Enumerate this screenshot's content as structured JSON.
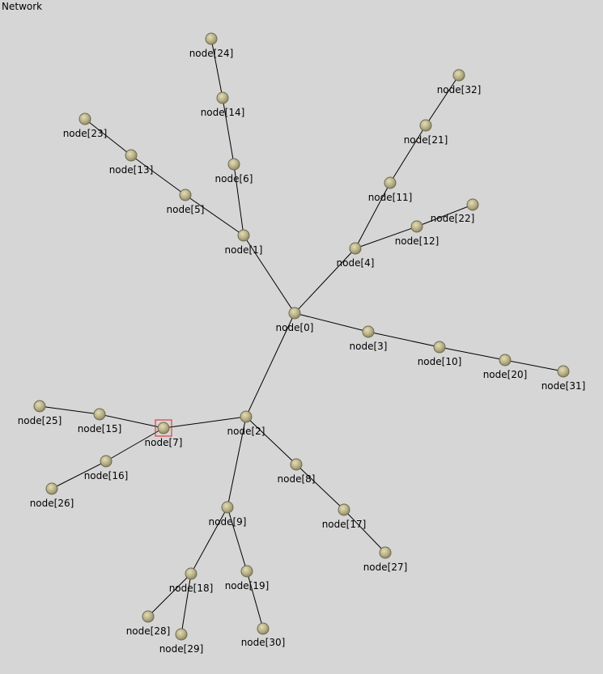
{
  "title": "Network",
  "selected_node": "node[7]",
  "colors": {
    "background": "#d6d6d6",
    "node_fill": "#b8b089",
    "node_rim": "#6f6a4f",
    "edge": "#000000",
    "selection": "#e02020"
  },
  "nodes": [
    {
      "id": "node[0]",
      "label": "node[0]"
    },
    {
      "id": "node[1]",
      "label": "node[1]"
    },
    {
      "id": "node[2]",
      "label": "node[2]"
    },
    {
      "id": "node[3]",
      "label": "node[3]"
    },
    {
      "id": "node[4]",
      "label": "node[4]"
    },
    {
      "id": "node[5]",
      "label": "node[5]"
    },
    {
      "id": "node[6]",
      "label": "node[6]"
    },
    {
      "id": "node[7]",
      "label": "node[7]"
    },
    {
      "id": "node[8]",
      "label": "node[8]"
    },
    {
      "id": "node[9]",
      "label": "node[9]"
    },
    {
      "id": "node[10]",
      "label": "node[10]"
    },
    {
      "id": "node[11]",
      "label": "node[11]"
    },
    {
      "id": "node[12]",
      "label": "node[12]"
    },
    {
      "id": "node[13]",
      "label": "node[13]"
    },
    {
      "id": "node[14]",
      "label": "node[14]"
    },
    {
      "id": "node[15]",
      "label": "node[15]"
    },
    {
      "id": "node[16]",
      "label": "node[16]"
    },
    {
      "id": "node[17]",
      "label": "node[17]"
    },
    {
      "id": "node[18]",
      "label": "node[18]"
    },
    {
      "id": "node[19]",
      "label": "node[19]"
    },
    {
      "id": "node[20]",
      "label": "node[20]"
    },
    {
      "id": "node[21]",
      "label": "node[21]"
    },
    {
      "id": "node[22]",
      "label": "node[22]"
    },
    {
      "id": "node[23]",
      "label": "node[23]"
    },
    {
      "id": "node[24]",
      "label": "node[24]"
    },
    {
      "id": "node[25]",
      "label": "node[25]"
    },
    {
      "id": "node[26]",
      "label": "node[26]"
    },
    {
      "id": "node[27]",
      "label": "node[27]"
    },
    {
      "id": "node[28]",
      "label": "node[28]"
    },
    {
      "id": "node[29]",
      "label": "node[29]"
    },
    {
      "id": "node[30]",
      "label": "node[30]"
    },
    {
      "id": "node[31]",
      "label": "node[31]"
    },
    {
      "id": "node[32]",
      "label": "node[32]"
    }
  ],
  "edges": [
    [
      "node[0]",
      "node[1]"
    ],
    [
      "node[0]",
      "node[2]"
    ],
    [
      "node[0]",
      "node[3]"
    ],
    [
      "node[0]",
      "node[4]"
    ],
    [
      "node[1]",
      "node[5]"
    ],
    [
      "node[1]",
      "node[6]"
    ],
    [
      "node[2]",
      "node[7]"
    ],
    [
      "node[2]",
      "node[8]"
    ],
    [
      "node[2]",
      "node[9]"
    ],
    [
      "node[3]",
      "node[10]"
    ],
    [
      "node[4]",
      "node[11]"
    ],
    [
      "node[4]",
      "node[12]"
    ],
    [
      "node[5]",
      "node[13]"
    ],
    [
      "node[6]",
      "node[14]"
    ],
    [
      "node[7]",
      "node[15]"
    ],
    [
      "node[7]",
      "node[16]"
    ],
    [
      "node[8]",
      "node[17]"
    ],
    [
      "node[9]",
      "node[18]"
    ],
    [
      "node[9]",
      "node[19]"
    ],
    [
      "node[10]",
      "node[20]"
    ],
    [
      "node[11]",
      "node[21]"
    ],
    [
      "node[12]",
      "node[22]"
    ],
    [
      "node[13]",
      "node[23]"
    ],
    [
      "node[14]",
      "node[24]"
    ],
    [
      "node[15]",
      "node[25]"
    ],
    [
      "node[16]",
      "node[26]"
    ],
    [
      "node[17]",
      "node[27]"
    ],
    [
      "node[18]",
      "node[28]"
    ],
    [
      "node[18]",
      "node[29]"
    ],
    [
      "node[19]",
      "node[30]"
    ],
    [
      "node[20]",
      "node[31]"
    ],
    [
      "node[21]",
      "node[32]"
    ]
  ]
}
